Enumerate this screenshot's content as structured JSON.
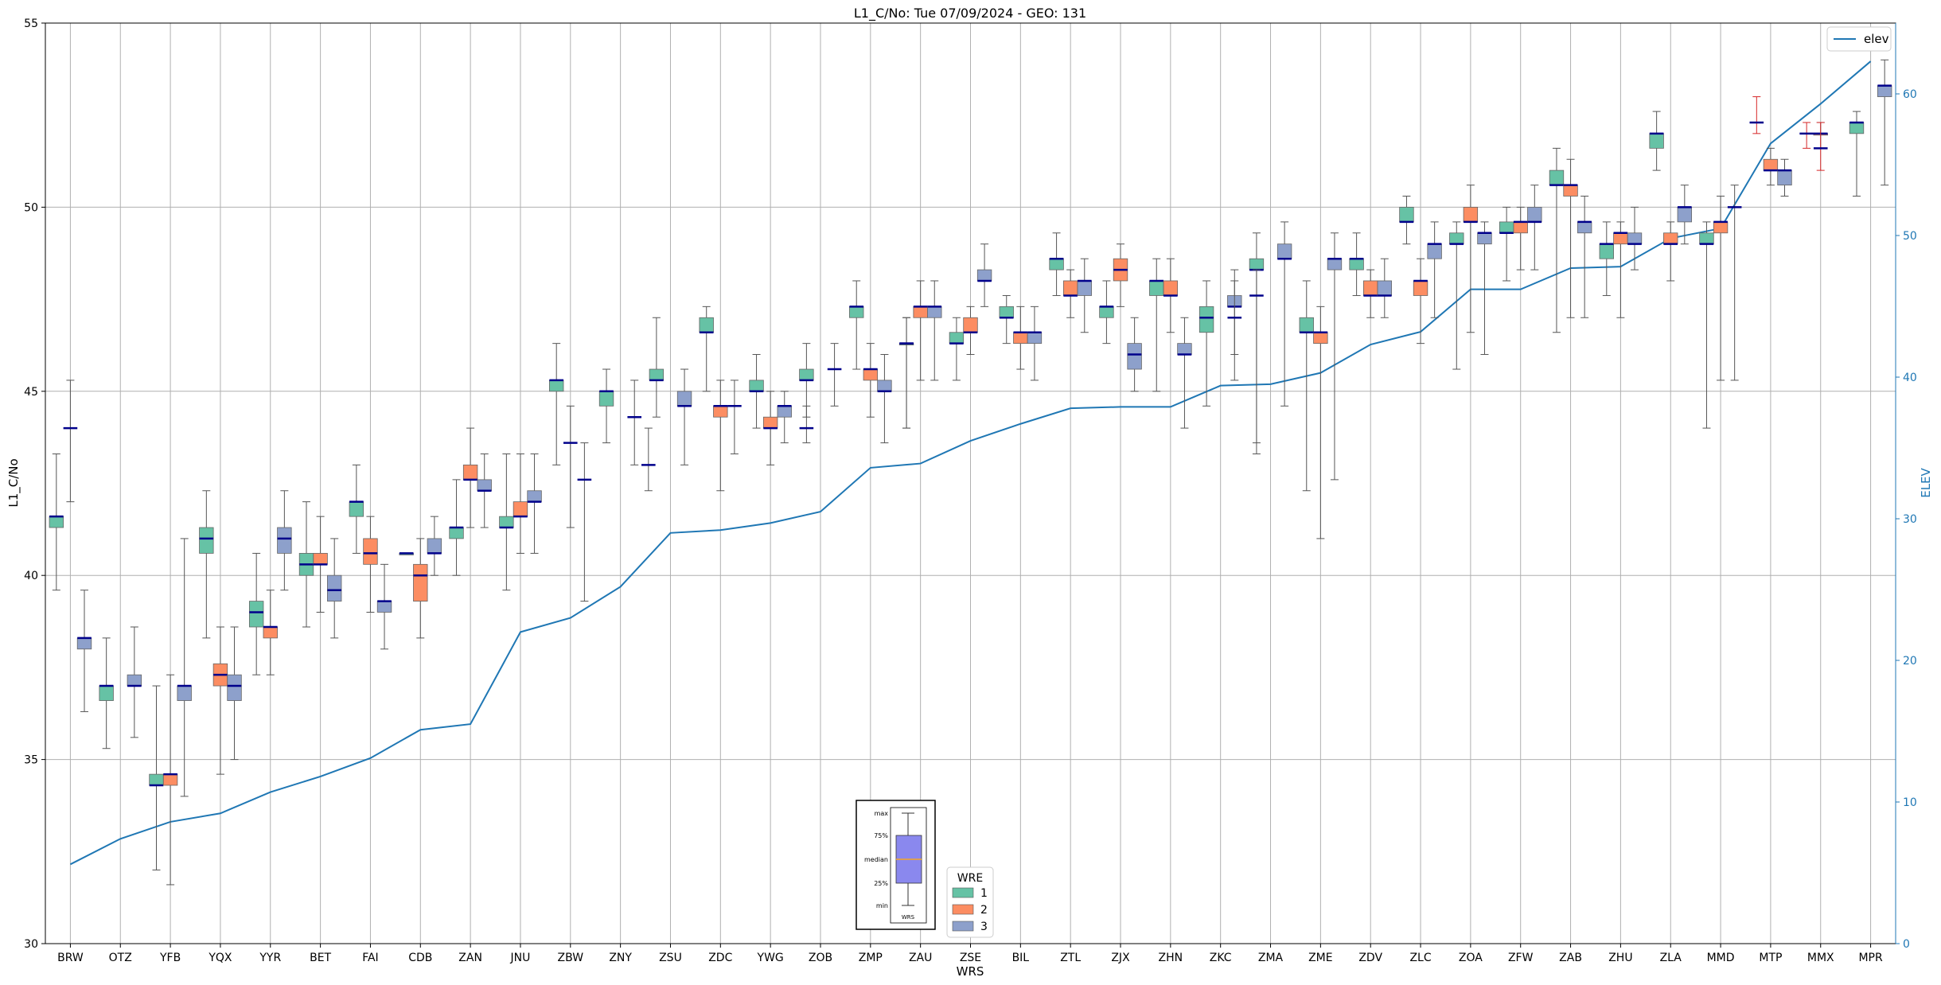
{
  "chart_data": {
    "type": "box",
    "title": "L1_C/No: Tue 07/09/2024 - GEO: 131",
    "xlabel": "WRS",
    "ylabel": "L1_C/No",
    "y2label": "ELEV",
    "ylim": [
      30,
      55
    ],
    "y2lim": [
      0,
      65
    ],
    "yticks": [
      30,
      35,
      40,
      45,
      50,
      55
    ],
    "y2ticks": [
      0,
      10,
      20,
      30,
      40,
      50,
      60
    ],
    "grid": true,
    "colors": {
      "1": "#66c2a5",
      "2": "#fc8d62",
      "3": "#8da0cb",
      "median": "#00008b",
      "whisker": "#555555",
      "elev": "#1f77b4",
      "y2axis": "#1f77b4",
      "flier_whisker": "#d62728"
    },
    "categories": [
      "BRW",
      "OTZ",
      "YFB",
      "YQX",
      "YYR",
      "BET",
      "FAI",
      "CDB",
      "ZAN",
      "JNU",
      "ZBW",
      "ZNY",
      "ZSU",
      "ZDC",
      "YWG",
      "ZOB",
      "ZMP",
      "ZAU",
      "ZSE",
      "BIL",
      "ZTL",
      "ZJX",
      "ZHN",
      "ZKC",
      "ZMA",
      "ZME",
      "ZDV",
      "ZLC",
      "ZOA",
      "ZFW",
      "ZAB",
      "ZHU",
      "ZLA",
      "MMD",
      "MTP",
      "MMX",
      "MPR"
    ],
    "elev_legend": "elev",
    "elev": [
      5.6,
      7.4,
      8.6,
      9.2,
      10.7,
      11.8,
      13.1,
      15.1,
      15.5,
      22.0,
      23.0,
      25.2,
      29.0,
      29.2,
      29.7,
      30.5,
      33.6,
      33.9,
      35.5,
      36.7,
      37.8,
      37.9,
      37.9,
      39.4,
      39.5,
      40.3,
      42.3,
      43.2,
      46.2,
      46.2,
      47.7,
      47.8,
      49.8,
      50.5,
      56.5,
      59.3,
      62.3
    ],
    "legend": {
      "title": "WRE",
      "items": [
        "1",
        "2",
        "3"
      ]
    },
    "inset": {
      "labels": [
        "max",
        "75%",
        "median",
        "25%",
        "min"
      ],
      "xlabel": "WRS"
    },
    "series": [
      {
        "name": "1",
        "boxes": [
          {
            "cat": 0,
            "min": 39.6,
            "q1": 41.3,
            "med": 41.6,
            "q3": 41.6,
            "max": 43.3
          },
          {
            "cat": 1,
            "min": 35.3,
            "q1": 36.6,
            "med": 37.0,
            "q3": 37.0,
            "max": 38.3
          },
          {
            "cat": 2,
            "min": 32.0,
            "q1": 34.3,
            "med": 34.3,
            "q3": 34.6,
            "max": 37.0
          },
          {
            "cat": 3,
            "min": 38.3,
            "q1": 40.6,
            "med": 41.0,
            "q3": 41.3,
            "max": 42.3
          },
          {
            "cat": 4,
            "min": 37.3,
            "q1": 38.6,
            "med": 39.0,
            "q3": 39.3,
            "max": 40.6
          },
          {
            "cat": 5,
            "min": 38.6,
            "q1": 40.0,
            "med": 40.3,
            "q3": 40.6,
            "max": 42.0
          },
          {
            "cat": 6,
            "min": 40.6,
            "q1": 41.6,
            "med": 42.0,
            "q3": 42.0,
            "max": 43.0
          },
          {
            "cat": 7,
            "min": 40.6,
            "q1": 40.6,
            "med": 40.6,
            "q3": 40.6,
            "max": 40.6
          },
          {
            "cat": 8,
            "min": 40.0,
            "q1": 41.0,
            "med": 41.3,
            "q3": 41.3,
            "max": 42.6
          },
          {
            "cat": 9,
            "min": 39.6,
            "q1": 41.3,
            "med": 41.3,
            "q3": 41.6,
            "max": 43.3
          },
          {
            "cat": 10,
            "min": 43.0,
            "q1": 45.0,
            "med": 45.3,
            "q3": 45.3,
            "max": 46.3
          },
          {
            "cat": 11,
            "min": 43.6,
            "q1": 44.6,
            "med": 45.0,
            "q3": 45.0,
            "max": 45.6
          },
          {
            "cat": 12,
            "min": 44.3,
            "q1": 45.3,
            "med": 45.3,
            "q3": 45.6,
            "max": 47.0
          },
          {
            "cat": 13,
            "min": 45.0,
            "q1": 46.6,
            "med": 46.6,
            "q3": 47.0,
            "max": 47.3
          },
          {
            "cat": 14,
            "min": 44.0,
            "q1": 45.0,
            "med": 45.0,
            "q3": 45.3,
            "max": 46.0
          },
          {
            "cat": 15,
            "min": 44.3,
            "q1": 45.3,
            "med": 45.3,
            "q3": 45.6,
            "max": 46.3
          },
          {
            "cat": 16,
            "min": 45.6,
            "q1": 47.0,
            "med": 47.3,
            "q3": 47.3,
            "max": 48.0
          },
          {
            "cat": 17,
            "min": 44.0,
            "q1": 46.3,
            "med": 46.3,
            "q3": 46.3,
            "max": 47.0
          },
          {
            "cat": 18,
            "min": 45.3,
            "q1": 46.3,
            "med": 46.3,
            "q3": 46.6,
            "max": 47.0
          },
          {
            "cat": 19,
            "min": 46.3,
            "q1": 47.0,
            "med": 47.0,
            "q3": 47.3,
            "max": 47.6
          },
          {
            "cat": 20,
            "min": 47.6,
            "q1": 48.3,
            "med": 48.6,
            "q3": 48.6,
            "max": 49.3
          },
          {
            "cat": 21,
            "min": 46.3,
            "q1": 47.0,
            "med": 47.3,
            "q3": 47.3,
            "max": 48.0
          },
          {
            "cat": 22,
            "min": 45.0,
            "q1": 47.6,
            "med": 48.0,
            "q3": 48.0,
            "max": 48.6
          },
          {
            "cat": 23,
            "min": 44.6,
            "q1": 46.6,
            "med": 47.0,
            "q3": 47.3,
            "max": 48.0
          },
          {
            "cat": 24,
            "min": 43.6,
            "q1": 48.3,
            "med": 48.3,
            "q3": 48.6,
            "max": 49.3
          },
          {
            "cat": 25,
            "min": 42.3,
            "q1": 46.6,
            "med": 46.6,
            "q3": 47.0,
            "max": 48.0
          },
          {
            "cat": 26,
            "min": 47.6,
            "q1": 48.3,
            "med": 48.6,
            "q3": 48.6,
            "max": 49.3
          },
          {
            "cat": 27,
            "min": 49.0,
            "q1": 49.6,
            "med": 49.6,
            "q3": 50.0,
            "max": 50.3
          },
          {
            "cat": 28,
            "min": 45.6,
            "q1": 49.0,
            "med": 49.0,
            "q3": 49.3,
            "max": 49.6
          },
          {
            "cat": 29,
            "min": 48.0,
            "q1": 49.3,
            "med": 49.3,
            "q3": 49.6,
            "max": 50.0
          },
          {
            "cat": 30,
            "min": 46.6,
            "q1": 50.6,
            "med": 50.6,
            "q3": 51.0,
            "max": 51.6
          },
          {
            "cat": 31,
            "min": 47.6,
            "q1": 48.6,
            "med": 49.0,
            "q3": 49.0,
            "max": 49.6
          },
          {
            "cat": 32,
            "min": 51.0,
            "q1": 51.6,
            "med": 52.0,
            "q3": 52.0,
            "max": 52.6
          },
          {
            "cat": 33,
            "min": 44.0,
            "q1": 49.0,
            "med": 49.0,
            "q3": 49.3,
            "max": 49.6
          },
          {
            "cat": 36,
            "min": 50.3,
            "q1": 52.0,
            "med": 52.3,
            "q3": 52.3,
            "max": 52.6
          }
        ]
      },
      {
        "name": "2",
        "boxes": [
          {
            "cat": 2,
            "min": 31.6,
            "q1": 34.3,
            "med": 34.6,
            "q3": 34.6,
            "max": 37.3
          },
          {
            "cat": 3,
            "min": 34.6,
            "q1": 37.0,
            "med": 37.3,
            "q3": 37.6,
            "max": 38.6
          },
          {
            "cat": 4,
            "min": 37.3,
            "q1": 38.3,
            "med": 38.6,
            "q3": 38.6,
            "max": 39.6
          },
          {
            "cat": 5,
            "min": 39.0,
            "q1": 40.3,
            "med": 40.3,
            "q3": 40.6,
            "max": 41.6
          },
          {
            "cat": 6,
            "min": 39.0,
            "q1": 40.3,
            "med": 40.6,
            "q3": 41.0,
            "max": 41.6
          },
          {
            "cat": 7,
            "min": 38.3,
            "q1": 39.3,
            "med": 40.0,
            "q3": 40.3,
            "max": 41.0
          },
          {
            "cat": 8,
            "min": 41.3,
            "q1": 42.6,
            "med": 42.6,
            "q3": 43.0,
            "max": 44.0
          },
          {
            "cat": 9,
            "min": 40.6,
            "q1": 41.6,
            "med": 41.6,
            "q3": 42.0,
            "max": 43.3
          },
          {
            "cat": 13,
            "min": 42.3,
            "q1": 44.3,
            "med": 44.6,
            "q3": 44.6,
            "max": 45.3
          },
          {
            "cat": 14,
            "min": 43.0,
            "q1": 44.0,
            "med": 44.0,
            "q3": 44.3,
            "max": 45.0
          },
          {
            "cat": 16,
            "min": 44.3,
            "q1": 45.3,
            "med": 45.6,
            "q3": 45.6,
            "max": 46.3
          },
          {
            "cat": 17,
            "min": 45.3,
            "q1": 47.0,
            "med": 47.3,
            "q3": 47.3,
            "max": 48.0
          },
          {
            "cat": 18,
            "min": 46.0,
            "q1": 46.6,
            "med": 46.6,
            "q3": 47.0,
            "max": 47.3
          },
          {
            "cat": 19,
            "min": 45.6,
            "q1": 46.3,
            "med": 46.6,
            "q3": 46.6,
            "max": 47.3
          },
          {
            "cat": 20,
            "min": 47.0,
            "q1": 47.6,
            "med": 47.6,
            "q3": 48.0,
            "max": 48.3
          },
          {
            "cat": 21,
            "min": 47.3,
            "q1": 48.0,
            "med": 48.3,
            "q3": 48.6,
            "max": 49.0
          },
          {
            "cat": 22,
            "min": 46.6,
            "q1": 47.6,
            "med": 47.6,
            "q3": 48.0,
            "max": 48.6
          },
          {
            "cat": 25,
            "min": 41.0,
            "q1": 46.3,
            "med": 46.6,
            "q3": 46.6,
            "max": 47.3
          },
          {
            "cat": 26,
            "min": 47.0,
            "q1": 47.6,
            "med": 47.6,
            "q3": 48.0,
            "max": 48.3
          },
          {
            "cat": 27,
            "min": 46.3,
            "q1": 47.6,
            "med": 48.0,
            "q3": 48.0,
            "max": 48.6
          },
          {
            "cat": 28,
            "min": 46.6,
            "q1": 49.6,
            "med": 49.6,
            "q3": 50.0,
            "max": 50.6
          },
          {
            "cat": 29,
            "min": 48.3,
            "q1": 49.3,
            "med": 49.6,
            "q3": 49.6,
            "max": 50.0
          },
          {
            "cat": 30,
            "min": 47.0,
            "q1": 50.3,
            "med": 50.6,
            "q3": 50.6,
            "max": 51.3
          },
          {
            "cat": 31,
            "min": 47.0,
            "q1": 49.0,
            "med": 49.3,
            "q3": 49.3,
            "max": 49.6
          },
          {
            "cat": 32,
            "min": 48.0,
            "q1": 49.0,
            "med": 49.0,
            "q3": 49.3,
            "max": 49.6
          },
          {
            "cat": 33,
            "min": 45.3,
            "q1": 49.3,
            "med": 49.6,
            "q3": 49.6,
            "max": 50.3
          },
          {
            "cat": 34,
            "min": 50.6,
            "q1": 51.0,
            "med": 51.0,
            "q3": 51.3,
            "max": 51.6
          },
          {
            "cat": 35,
            "min": 51.6,
            "q1": 52.0,
            "med": 52.0,
            "q3": 52.0,
            "max": 52.3
          }
        ]
      },
      {
        "name": "3",
        "boxes": [
          {
            "cat": 0,
            "min": 36.3,
            "q1": 38.0,
            "med": 38.3,
            "q3": 38.3,
            "max": 39.6
          },
          {
            "cat": 1,
            "min": 35.6,
            "q1": 37.0,
            "med": 37.0,
            "q3": 37.3,
            "max": 38.6
          },
          {
            "cat": 2,
            "min": 34.0,
            "q1": 36.6,
            "med": 37.0,
            "q3": 37.0,
            "max": 41.0
          },
          {
            "cat": 3,
            "min": 35.0,
            "q1": 36.6,
            "med": 37.0,
            "q3": 37.3,
            "max": 38.6
          },
          {
            "cat": 4,
            "min": 39.6,
            "q1": 40.6,
            "med": 41.0,
            "q3": 41.3,
            "max": 42.3
          },
          {
            "cat": 5,
            "min": 38.3,
            "q1": 39.3,
            "med": 39.6,
            "q3": 40.0,
            "max": 41.0
          },
          {
            "cat": 6,
            "min": 38.0,
            "q1": 39.0,
            "med": 39.3,
            "q3": 39.3,
            "max": 40.3
          },
          {
            "cat": 7,
            "min": 40.0,
            "q1": 40.6,
            "med": 40.6,
            "q3": 41.0,
            "max": 41.6
          },
          {
            "cat": 8,
            "min": 41.3,
            "q1": 42.3,
            "med": 42.3,
            "q3": 42.6,
            "max": 43.3
          },
          {
            "cat": 9,
            "min": 40.6,
            "q1": 42.0,
            "med": 42.0,
            "q3": 42.3,
            "max": 43.3
          },
          {
            "cat": 12,
            "min": 43.0,
            "q1": 44.6,
            "med": 44.6,
            "q3": 45.0,
            "max": 45.6
          },
          {
            "cat": 14,
            "min": 43.6,
            "q1": 44.3,
            "med": 44.6,
            "q3": 44.6,
            "max": 45.0
          },
          {
            "cat": 16,
            "min": 43.6,
            "q1": 45.0,
            "med": 45.0,
            "q3": 45.3,
            "max": 46.0
          },
          {
            "cat": 17,
            "min": 45.3,
            "q1": 47.0,
            "med": 47.3,
            "q3": 47.3,
            "max": 48.0
          },
          {
            "cat": 18,
            "min": 47.3,
            "q1": 48.0,
            "med": 48.0,
            "q3": 48.3,
            "max": 49.0
          },
          {
            "cat": 19,
            "min": 45.3,
            "q1": 46.3,
            "med": 46.6,
            "q3": 46.6,
            "max": 47.3
          },
          {
            "cat": 20,
            "min": 46.6,
            "q1": 47.6,
            "med": 48.0,
            "q3": 48.0,
            "max": 48.6
          },
          {
            "cat": 21,
            "min": 45.0,
            "q1": 45.6,
            "med": 46.0,
            "q3": 46.3,
            "max": 47.0
          },
          {
            "cat": 22,
            "min": 44.0,
            "q1": 46.0,
            "med": 46.0,
            "q3": 46.3,
            "max": 47.0
          },
          {
            "cat": 23,
            "min": 46.0,
            "q1": 47.3,
            "med": 47.3,
            "q3": 47.6,
            "max": 48.3
          },
          {
            "cat": 24,
            "min": 44.6,
            "q1": 48.6,
            "med": 48.6,
            "q3": 49.0,
            "max": 49.6
          },
          {
            "cat": 25,
            "min": 42.6,
            "q1": 48.3,
            "med": 48.6,
            "q3": 48.6,
            "max": 49.3
          },
          {
            "cat": 26,
            "min": 47.0,
            "q1": 47.6,
            "med": 47.6,
            "q3": 48.0,
            "max": 48.6
          },
          {
            "cat": 27,
            "min": 47.0,
            "q1": 48.6,
            "med": 49.0,
            "q3": 49.0,
            "max": 49.6
          },
          {
            "cat": 28,
            "min": 46.0,
            "q1": 49.0,
            "med": 49.3,
            "q3": 49.3,
            "max": 49.6
          },
          {
            "cat": 29,
            "min": 48.3,
            "q1": 49.6,
            "med": 49.6,
            "q3": 50.0,
            "max": 50.6
          },
          {
            "cat": 30,
            "min": 47.0,
            "q1": 49.3,
            "med": 49.6,
            "q3": 49.6,
            "max": 50.3
          },
          {
            "cat": 31,
            "min": 48.3,
            "q1": 49.0,
            "med": 49.0,
            "q3": 49.3,
            "max": 50.0
          },
          {
            "cat": 32,
            "min": 49.0,
            "q1": 49.6,
            "med": 50.0,
            "q3": 50.0,
            "max": 50.6
          },
          {
            "cat": 34,
            "min": 50.3,
            "q1": 50.6,
            "med": 51.0,
            "q3": 51.0,
            "max": 51.3
          },
          {
            "cat": 36,
            "min": 50.6,
            "q1": 53.0,
            "med": 53.3,
            "q3": 53.3,
            "max": 54.0
          }
        ]
      }
    ],
    "single_marks": [
      {
        "cat": 0,
        "value": 44.0,
        "min": 42.0,
        "max": 45.3
      },
      {
        "cat": 10,
        "value": 43.6,
        "min": 41.3,
        "max": 44.6
      },
      {
        "cat": 10,
        "value": 42.6,
        "min": 39.3,
        "max": 43.6,
        "offset": 1
      },
      {
        "cat": 11,
        "value": 44.3,
        "min": 43.0,
        "max": 45.3,
        "offset": 1
      },
      {
        "cat": 11,
        "value": 43.0,
        "min": 42.3,
        "max": 44.0,
        "offset": 2
      },
      {
        "cat": 13,
        "value": 44.6,
        "min": 43.3,
        "max": 45.3,
        "offset": 1
      },
      {
        "cat": 15,
        "value": 44.0,
        "min": 43.6,
        "max": 44.6,
        "offset": -1
      },
      {
        "cat": 15,
        "value": 45.6,
        "min": 44.6,
        "max": 46.3,
        "offset": 1
      },
      {
        "cat": 17,
        "value": 46.3,
        "min": 44.0,
        "max": 47.0,
        "offset": -1
      },
      {
        "cat": 23,
        "value": 47.0,
        "min": 45.3,
        "max": 48.0,
        "offset": 1
      },
      {
        "cat": 24,
        "value": 47.6,
        "min": 43.3,
        "max": 48.3,
        "offset": -1
      },
      {
        "cat": 33,
        "value": 50.0,
        "min": 45.3,
        "max": 50.6,
        "offset": 1
      },
      {
        "cat": 34,
        "value": 52.3,
        "min": 52.0,
        "max": 53.0,
        "offset": -1,
        "red": true
      },
      {
        "cat": 35,
        "value": 52.0,
        "min": 51.6,
        "max": 52.3,
        "offset": -1,
        "red": true
      },
      {
        "cat": 35,
        "value": 51.6,
        "min": 51.0,
        "max": 52.3,
        "offset": 0,
        "red": true
      }
    ]
  }
}
